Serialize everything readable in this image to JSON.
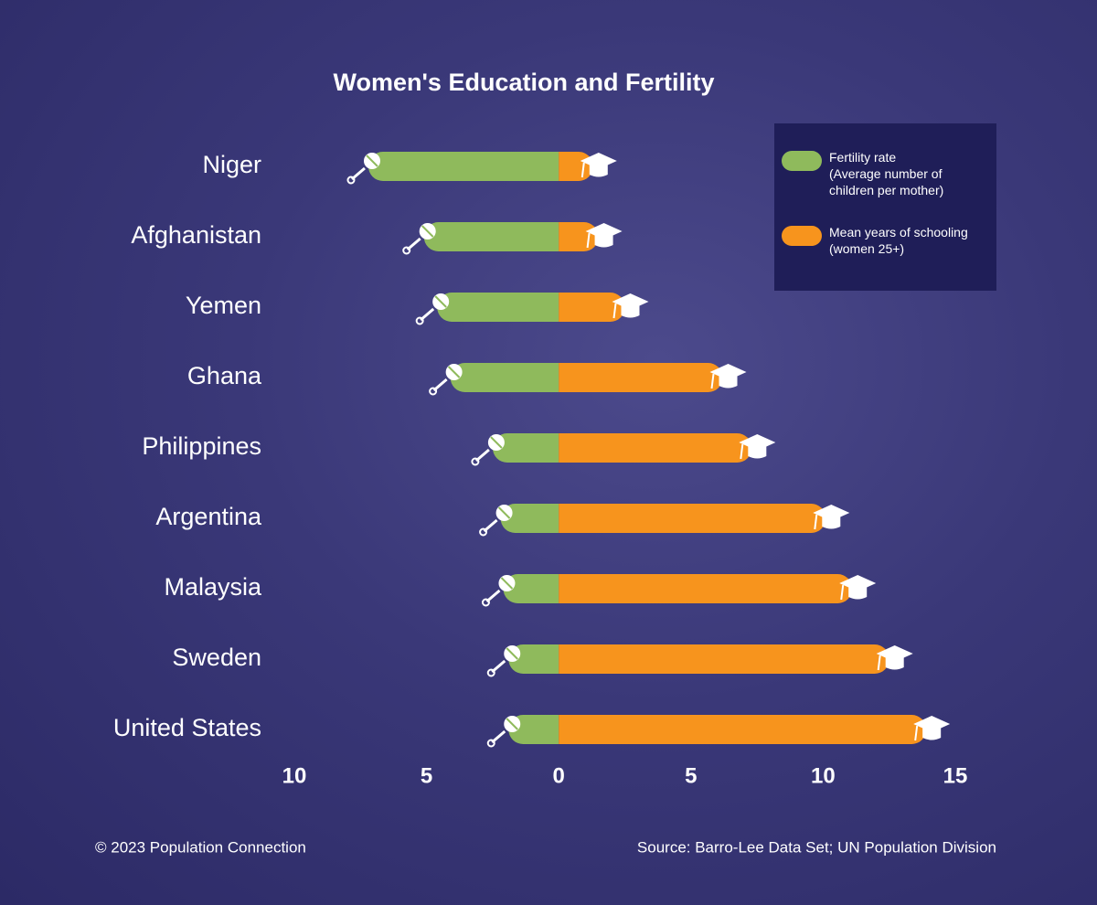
{
  "chart_data": {
    "type": "diverging-bar",
    "title": "Women's Education and Fertility",
    "categories": [
      "Niger",
      "Afghanistan",
      "Yemen",
      "Ghana",
      "Philippines",
      "Argentina",
      "Malaysia",
      "Sweden",
      "United States"
    ],
    "series": [
      {
        "name": "Fertility rate",
        "note": "(Average number of children per mother)",
        "color": "#8fba5c",
        "direction": "left",
        "values": [
          7.2,
          5.1,
          4.6,
          4.1,
          2.5,
          2.2,
          2.1,
          1.9,
          1.9
        ]
      },
      {
        "name": "Mean years of schooling",
        "note": "(women 25+)",
        "color": "#f7941d",
        "direction": "right",
        "values": [
          1.3,
          1.5,
          2.5,
          6.2,
          7.3,
          10.1,
          11.1,
          12.5,
          13.9
        ]
      }
    ],
    "xlim": [
      -10,
      15
    ],
    "xticks": [
      {
        "value": -10,
        "label": "10"
      },
      {
        "value": -5,
        "label": "5"
      },
      0,
      5,
      10,
      15
    ],
    "footer_left": "© 2023 Population Connection",
    "footer_right": "Source: Barro-Lee Data Set; UN Population Division"
  }
}
